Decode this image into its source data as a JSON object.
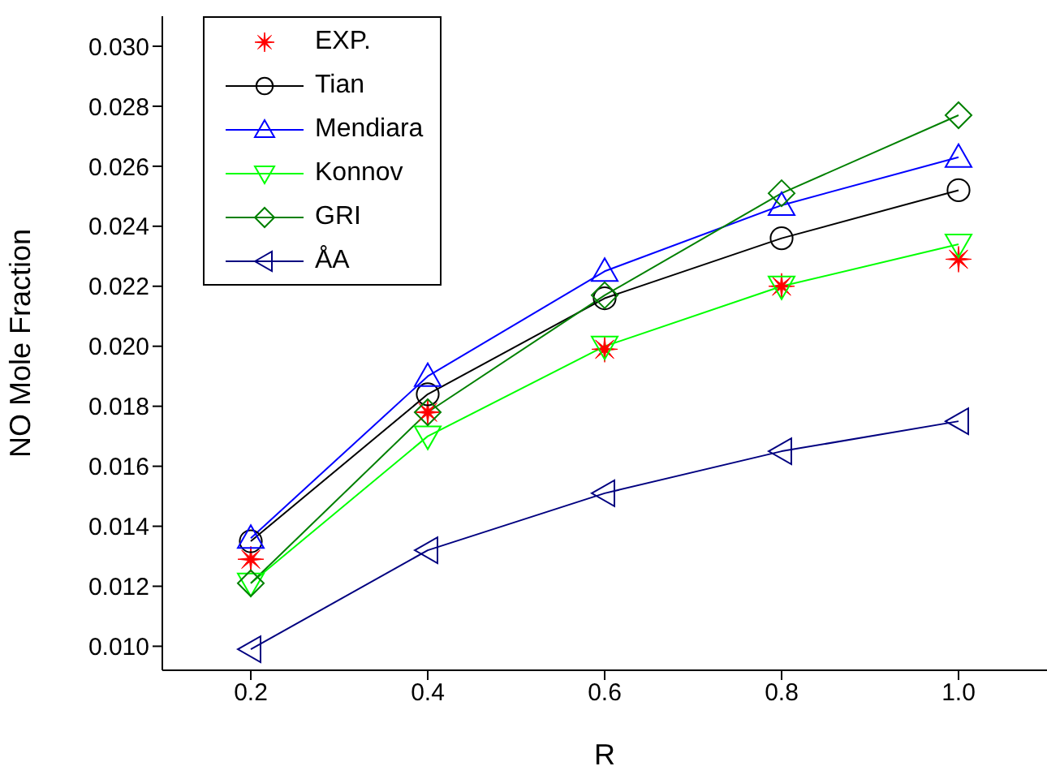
{
  "chart_data": {
    "type": "line",
    "xlabel": "R",
    "ylabel": "NO Mole Fraction",
    "x": [
      0.2,
      0.4,
      0.6,
      0.8,
      1.0
    ],
    "series": [
      {
        "name": "EXP.",
        "type": "scatter",
        "color": "#ff0000",
        "marker": "star",
        "values": [
          0.0129,
          0.0178,
          0.0199,
          0.022,
          0.0229
        ]
      },
      {
        "name": "Tian",
        "color": "#000000",
        "marker": "circle",
        "values": [
          0.0135,
          0.0184,
          0.0216,
          0.0236,
          0.0252
        ]
      },
      {
        "name": "Mendiara",
        "color": "#0000ff",
        "marker": "triangle",
        "values": [
          0.0136,
          0.019,
          0.0225,
          0.0247,
          0.0263
        ]
      },
      {
        "name": "Konnov",
        "color": "#00ff00",
        "marker": "triangle-down",
        "values": [
          0.0121,
          0.017,
          0.02,
          0.022,
          0.0234
        ]
      },
      {
        "name": "GRI",
        "color": "#008000",
        "marker": "diamond",
        "values": [
          0.0121,
          0.0178,
          0.0217,
          0.0251,
          0.0277
        ]
      },
      {
        "name": "ÅA",
        "color": "#000080",
        "marker": "triangle-left",
        "values": [
          0.0099,
          0.0132,
          0.0151,
          0.0165,
          0.0175
        ]
      }
    ],
    "xlim": [
      0.1,
      1.1
    ],
    "xticks": [
      0.2,
      0.4,
      0.6,
      0.8,
      {
        "value": 1,
        "label": "1.0"
      }
    ],
    "ylim": [
      0.0092,
      0.031
    ],
    "yticks": [
      {
        "value": 0.01,
        "label": "0.010"
      },
      0.012,
      0.014,
      0.016,
      0.018,
      {
        "value": 0.02,
        "label": "0.020"
      },
      0.022,
      0.024,
      0.026,
      0.028,
      {
        "value": 0.03,
        "label": "0.030"
      }
    ],
    "grid": false,
    "legend": "top left"
  }
}
